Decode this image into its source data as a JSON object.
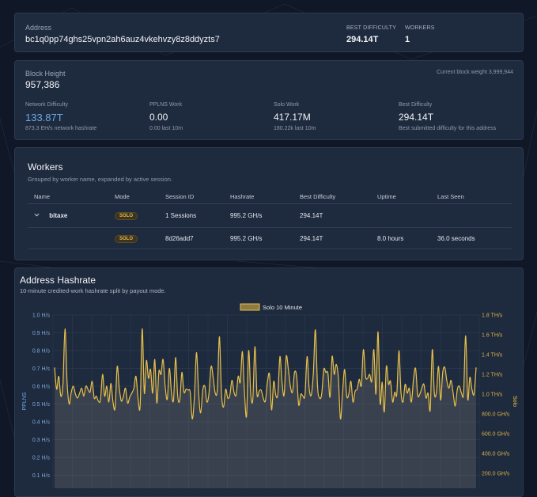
{
  "address_card": {
    "label": "Address",
    "address": "bc1q0pp74ghs25vpn2ah6auz4vkehvzy8z8ddyzts7",
    "best_difficulty_label": "BEST DIFFICULTY",
    "best_difficulty": "294.14T",
    "workers_label": "WORKERS",
    "workers": "1"
  },
  "block_card": {
    "height_label": "Block Height",
    "height": "957,386",
    "weight_text": "Current block weight 3,999,944",
    "stats": [
      {
        "label": "Network Difficulty",
        "value": "133.87T",
        "sub": "873.3 EH/s network hashrate"
      },
      {
        "label": "PPLNS Work",
        "value": "0.00",
        "sub": "0.00 last 10m"
      },
      {
        "label": "Solo Work",
        "value": "417.17M",
        "sub": "180.22k last 10m"
      },
      {
        "label": "Best Difficulty",
        "value": "294.14T",
        "sub": "Best submitted difficulty for this address"
      }
    ]
  },
  "workers_card": {
    "title": "Workers",
    "subtitle": "Grouped by worker name, expanded by active session.",
    "columns": [
      "Name",
      "Mode",
      "Session ID",
      "Hashrate",
      "Best Difficulty",
      "Uptime",
      "Last Seen"
    ],
    "group_row": {
      "name": "bitaxe",
      "mode": "SOLO",
      "session": "1 Sessions",
      "hashrate": "995.2 GH/s",
      "best": "294.14T",
      "uptime": "",
      "last_seen": ""
    },
    "session_row": {
      "name": "",
      "mode": "SOLO",
      "session": "8d26add7",
      "hashrate": "995.2 GH/s",
      "best": "294.14T",
      "uptime": "8.0 hours",
      "last_seen": "36.0 seconds"
    }
  },
  "hashrate_card": {
    "title": "Address Hashrate",
    "subtitle": "10-minute credited-work hashrate split by payout mode."
  },
  "chart_data": {
    "type": "area",
    "legend": [
      "Solo 10 Minute"
    ],
    "legend_position": "top-center",
    "left_axis_label": "PPLNS",
    "right_axis_label": "Solo",
    "left_ticks": [
      "1.0 H/s",
      "0.9 H/s",
      "0.8 H/s",
      "0.7 H/s",
      "0.6 H/s",
      "0.5 H/s",
      "0.4 H/s",
      "0.3 H/s",
      "0.2 H/s",
      "0.1 H/s"
    ],
    "right_ticks": [
      "1.8 TH/s",
      "1.6 TH/s",
      "1.4 TH/s",
      "1.2 TH/s",
      "1.0 TH/s",
      "800.0 GH/s",
      "600.0 GH/s",
      "400.0 GH/s",
      "200.0 GH/s"
    ],
    "left_ylim": [
      0.1,
      1.0
    ],
    "right_ylim_ths": [
      0.175,
      1.8
    ],
    "grid": true,
    "series": [
      {
        "name": "Solo 10 Minute",
        "axis": "right",
        "color": "#e8c04a",
        "values_ths": [
          1.27,
          1.05,
          1.18,
          0.98,
          1.1,
          1.66,
          1.12,
          0.9,
          1.02,
          1.08,
          1.0,
          0.96,
          1.01,
          1.06,
          0.98,
          1.08,
          1.05,
          1.02,
          1.13,
          0.96,
          0.98,
          0.93,
          0.94,
          1.2,
          0.98,
          1.08,
          0.92,
          1.11,
          0.92,
          0.86,
          1.28,
          1.06,
          0.93,
          0.98,
          1.06,
          0.91,
          0.97,
          1.01,
          1.06,
          1.18,
          0.96,
          0.88,
          1.66,
          1.01,
          1.34,
          1.16,
          1.25,
          1.01,
          1.35,
          0.91,
          1.23,
          1.2,
          1.35,
          1.08,
          0.95,
          1.26,
          1.02,
          0.94,
          1.37,
          0.98,
          0.94,
          1.22,
          1.02,
          1.05,
          1.04,
          1.02,
          0.75,
          0.97,
          1.42,
          1.02,
          0.81,
          1.04,
          1.08,
          0.92,
          1.01,
          1.28,
          1.17,
          1.01,
          1.05,
          1.58,
          1.0,
          0.87,
          1.05,
          0.96,
          0.99,
          1.14,
          1.02,
          0.99,
          1.18,
          1.12,
          1.43,
          1.02,
          0.78,
          1.44,
          1.0,
          0.95,
          1.48,
          1.0,
          1.03,
          1.04,
          0.96,
          0.93,
          1.12,
          1.2,
          0.84,
          1.13,
          0.99,
          1.0,
          1.38,
          1.12,
          0.99,
          1.38,
          1.26,
          1.08,
          1.02,
          1.22,
          1.18,
          0.89,
          1.0,
          0.98,
          0.99,
          1.38,
          1.06,
          0.99,
          1.21,
          1.65,
          1.08,
          0.96,
          1.0,
          1.25,
          1.22,
          1.21,
          0.97,
          1.38,
          1.2,
          1.3,
          1.16,
          0.75,
          1.02,
          1.25,
          0.98,
          1.0,
          1.13,
          0.92,
          1.03,
          1.05,
          1.15,
          1.09,
          1.45,
          1.18,
          1.16,
          1.2,
          1.13,
          1.45,
          1.0,
          1.63,
          0.91,
          1.12,
          0.82,
          1.28,
          1.1,
          1.13,
          0.92,
          1.02,
          1.0,
          1.44,
          1.02,
          0.92,
          1.1,
          1.01,
          1.06,
          0.92,
          1.15,
          1.26,
          0.99,
          1.0,
          1.06,
          1.1,
          0.96,
          1.01,
          0.84,
          1.45,
          1.01,
          1.02,
          1.28,
          0.94,
          1.22,
          1.27,
          1.13,
          1.06,
          1.14,
          1.01,
          0.88,
          1.05,
          1.08,
          1.01,
          1.01,
          1.59,
          0.95,
          1.17,
          1.05,
          1.0,
          1.27
        ]
      }
    ]
  }
}
